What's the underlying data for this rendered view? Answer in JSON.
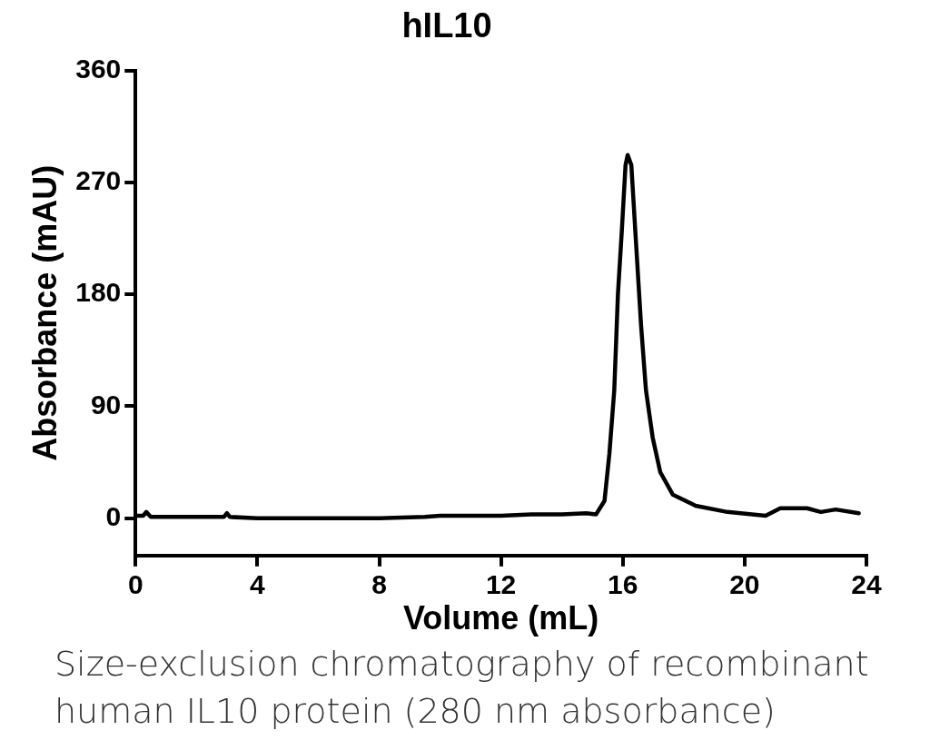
{
  "chart_data": {
    "type": "line",
    "title": "hIL10",
    "xlabel": "Volume (mL)",
    "ylabel": "Absorbance (mAU)",
    "annotations": [
      "Size-exclusion chromatography of recombinant human IL10 protein  (280 nm absorbance)"
    ],
    "xlim": [
      0,
      24
    ],
    "xticks": [
      0,
      4,
      8,
      12,
      16,
      20,
      24
    ],
    "ylim": [
      -30,
      360
    ],
    "yticks": [
      0,
      90,
      180,
      270,
      360
    ],
    "grid": false,
    "legend": false,
    "marker": "none",
    "line_style": "solid",
    "series": [
      {
        "color": "#000000",
        "x": [
          0.05,
          0.25,
          0.35,
          0.5,
          1.5,
          2.9,
          3.0,
          3.1,
          4,
          6,
          8,
          9.5,
          10,
          11,
          12,
          13,
          14,
          14.8,
          15.12,
          15.4,
          15.56,
          15.72,
          15.84,
          15.97,
          16.09,
          16.16,
          16.28,
          16.44,
          16.6,
          16.76,
          16.98,
          17.23,
          17.64,
          18.39,
          19.43,
          20.69,
          21.17,
          22.05,
          22.5,
          22.99,
          23.75
        ],
        "values": [
          2,
          2,
          5,
          1,
          1,
          1,
          4,
          1,
          0,
          0,
          0,
          1,
          2,
          2,
          2,
          3,
          3,
          4,
          3,
          14,
          52,
          103,
          180,
          232,
          284,
          292,
          284,
          219,
          155,
          103,
          65,
          37,
          19,
          10,
          5,
          2,
          8,
          8,
          5,
          7,
          4
        ]
      }
    ]
  }
}
